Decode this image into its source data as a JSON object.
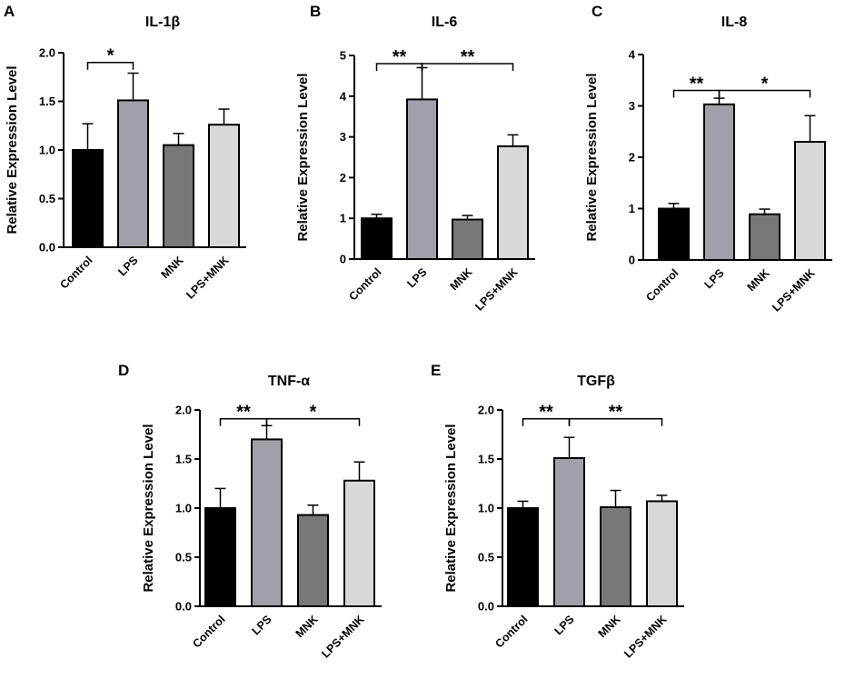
{
  "figure": {
    "colors": {
      "Control": "#000000",
      "LPS": "#a0a0a8",
      "MNK": "#787878",
      "LPS+MNK": "#d8d8d8",
      "line": "#000000"
    }
  },
  "chart_data": [
    {
      "type": "bar",
      "panel": "A",
      "title": "IL-1β",
      "ylabel": "Relative  Expression Level",
      "xlabel": "",
      "categories": [
        "Control",
        "LPS",
        "MNK",
        "LPS+MNK"
      ],
      "values": [
        1.0,
        1.51,
        1.05,
        1.26
      ],
      "errors": [
        0.27,
        0.28,
        0.12,
        0.16
      ],
      "ylim": [
        0,
        2.0
      ],
      "yticks": [
        0.0,
        0.5,
        1.0,
        1.5,
        2.0
      ],
      "ytick_labels": [
        "0.0",
        "0.5",
        "1.0",
        "1.5",
        "2.0"
      ],
      "significance": [
        {
          "from": "Control",
          "to": "LPS",
          "label": "*",
          "y": 1.9
        }
      ]
    },
    {
      "type": "bar",
      "panel": "B",
      "title": "IL-6",
      "ylabel": "Relative  Expression Level",
      "xlabel": "",
      "categories": [
        "Control",
        "LPS",
        "MNK",
        "LPS+MNK"
      ],
      "values": [
        1.0,
        3.92,
        0.97,
        2.77
      ],
      "errors": [
        0.1,
        0.78,
        0.1,
        0.28
      ],
      "ylim": [
        0,
        5
      ],
      "yticks": [
        0,
        1,
        2,
        3,
        4,
        5
      ],
      "ytick_labels": [
        "0",
        "1",
        "2",
        "3",
        "4",
        "5"
      ],
      "significance": [
        {
          "from": "Control",
          "to": "LPS",
          "label": "**",
          "y": 4.8
        },
        {
          "from": "LPS",
          "to": "LPS+MNK",
          "label": "**",
          "y": 4.8
        }
      ]
    },
    {
      "type": "bar",
      "panel": "C",
      "title": "IL-8",
      "ylabel": "Relative  Expression Level",
      "xlabel": "",
      "categories": [
        "Control",
        "LPS",
        "MNK",
        "LPS+MNK"
      ],
      "values": [
        1.0,
        3.03,
        0.89,
        2.3
      ],
      "errors": [
        0.1,
        0.12,
        0.1,
        0.51
      ],
      "ylim": [
        0,
        4
      ],
      "yticks": [
        0,
        1,
        2,
        3,
        4
      ],
      "ytick_labels": [
        "0",
        "1",
        "2",
        "3",
        "4"
      ],
      "significance": [
        {
          "from": "Control",
          "to": "LPS",
          "label": "**",
          "y": 3.3
        },
        {
          "from": "LPS",
          "to": "LPS+MNK",
          "label": "*",
          "y": 3.3
        }
      ]
    },
    {
      "type": "bar",
      "panel": "D",
      "title": "TNF-α",
      "ylabel": "Relative  Expression Level",
      "xlabel": "",
      "categories": [
        "Control",
        "LPS",
        "MNK",
        "LPS+MNK"
      ],
      "values": [
        1.0,
        1.7,
        0.93,
        1.28
      ],
      "errors": [
        0.2,
        0.14,
        0.1,
        0.19
      ],
      "ylim": [
        0,
        2.0
      ],
      "yticks": [
        0.0,
        0.5,
        1.0,
        1.5,
        2.0
      ],
      "ytick_labels": [
        "0.0",
        "0.5",
        "1.0",
        "1.5",
        "2.0"
      ],
      "significance": [
        {
          "from": "Control",
          "to": "LPS",
          "label": "**",
          "y": 1.91
        },
        {
          "from": "LPS",
          "to": "LPS+MNK",
          "label": "*",
          "y": 1.91
        }
      ]
    },
    {
      "type": "bar",
      "panel": "E",
      "title": "TGFβ",
      "ylabel": "Relative  Expression Level",
      "xlabel": "",
      "categories": [
        "Control",
        "LPS",
        "MNK",
        "LPS+MNK"
      ],
      "values": [
        1.0,
        1.51,
        1.01,
        1.07
      ],
      "errors": [
        0.07,
        0.21,
        0.17,
        0.06
      ],
      "ylim": [
        0,
        2.0
      ],
      "yticks": [
        0.0,
        0.5,
        1.0,
        1.5,
        2.0
      ],
      "ytick_labels": [
        "0.0",
        "0.5",
        "1.0",
        "1.5",
        "2.0"
      ],
      "significance": [
        {
          "from": "Control",
          "to": "LPS",
          "label": "**",
          "y": 1.91
        },
        {
          "from": "LPS",
          "to": "LPS+MNK",
          "label": "**",
          "y": 1.91
        }
      ]
    }
  ]
}
